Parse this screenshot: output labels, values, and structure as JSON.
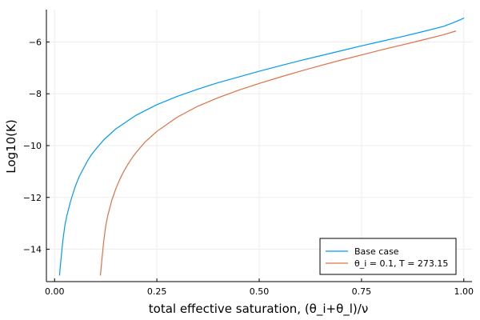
{
  "chart_data": {
    "type": "line",
    "title": "",
    "xlabel": "total effective saturation, (θ_i+θ_l)/ν",
    "ylabel": "Log10(K)",
    "xlim": [
      -0.02,
      1.02
    ],
    "ylim": [
      -15.25,
      -4.75
    ],
    "xticks": [
      0.0,
      0.25,
      0.5,
      0.75,
      1.0
    ],
    "xtick_labels": [
      "0.00",
      "0.25",
      "0.50",
      "0.75",
      "1.00"
    ],
    "yticks": [
      -14,
      -12,
      -10,
      -8,
      -6
    ],
    "ytick_labels": [
      "−14",
      "−12",
      "−10",
      "−8",
      "−6"
    ],
    "grid": true,
    "legend_position": "bottom-right",
    "series": [
      {
        "name": "Base case",
        "color": "#009af9",
        "x": [
          0.012,
          0.015,
          0.02,
          0.025,
          0.03,
          0.04,
          0.05,
          0.06,
          0.07,
          0.08,
          0.09,
          0.1,
          0.12,
          0.15,
          0.2,
          0.25,
          0.3,
          0.35,
          0.4,
          0.45,
          0.5,
          0.55,
          0.6,
          0.65,
          0.7,
          0.75,
          0.8,
          0.85,
          0.9,
          0.95,
          0.98,
          1.0
        ],
        "y": [
          -15.0,
          -14.5,
          -13.7,
          -13.1,
          -12.7,
          -12.1,
          -11.6,
          -11.2,
          -10.9,
          -10.6,
          -10.35,
          -10.15,
          -9.78,
          -9.35,
          -8.82,
          -8.42,
          -8.1,
          -7.82,
          -7.57,
          -7.35,
          -7.13,
          -6.92,
          -6.72,
          -6.53,
          -6.34,
          -6.15,
          -5.97,
          -5.79,
          -5.6,
          -5.4,
          -5.22,
          -5.08
        ]
      },
      {
        "name": "θ_i = 0.1, T = 273.15",
        "color": "#e26f46",
        "x": [
          0.112,
          0.115,
          0.12,
          0.125,
          0.13,
          0.14,
          0.15,
          0.16,
          0.17,
          0.18,
          0.19,
          0.2,
          0.22,
          0.25,
          0.3,
          0.35,
          0.4,
          0.45,
          0.5,
          0.55,
          0.6,
          0.65,
          0.7,
          0.75,
          0.8,
          0.85,
          0.9,
          0.95,
          0.98
        ],
        "y": [
          -15.0,
          -14.5,
          -13.7,
          -13.1,
          -12.7,
          -12.1,
          -11.65,
          -11.28,
          -10.97,
          -10.7,
          -10.46,
          -10.25,
          -9.88,
          -9.45,
          -8.9,
          -8.48,
          -8.15,
          -7.86,
          -7.6,
          -7.36,
          -7.13,
          -6.91,
          -6.7,
          -6.5,
          -6.3,
          -6.11,
          -5.92,
          -5.72,
          -5.58
        ]
      }
    ]
  }
}
